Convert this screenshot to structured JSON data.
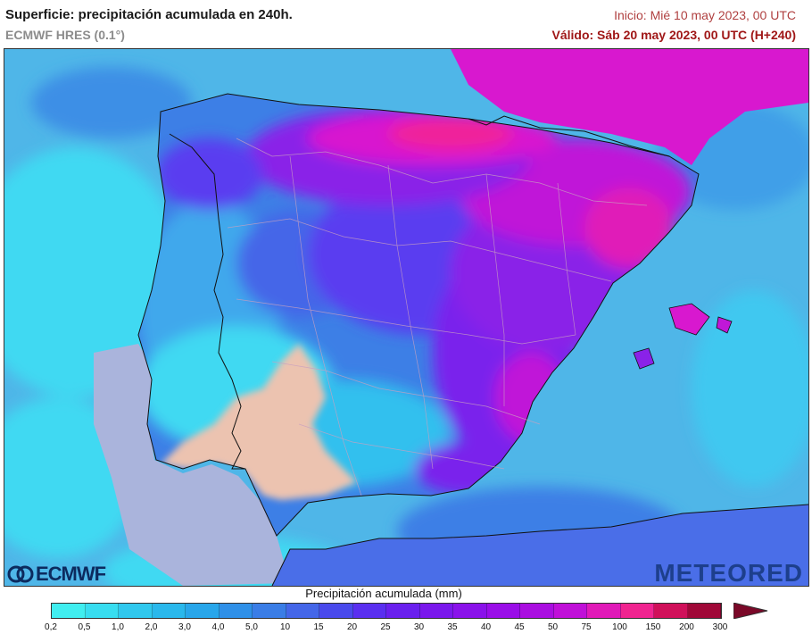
{
  "header": {
    "title": "Superficie: precipitación acumulada en 240h.",
    "model": "ECMWF HRES (0.1°)",
    "init": "Inicio: Mié 10 may 2023, 00 UTC",
    "valid": "Válido: Sáb 20 may 2023, 00 UTC (H+240)"
  },
  "logos": {
    "ecmwf": "ECMWF",
    "meteored": "METEORED"
  },
  "legend": {
    "title": "Precipitación acumulada (mm)",
    "unit": "mm",
    "ticks": [
      "0,2",
      "0,5",
      "1,0",
      "2,0",
      "3,0",
      "4,0",
      "5,0",
      "10",
      "15",
      "20",
      "25",
      "30",
      "35",
      "40",
      "45",
      "50",
      "75",
      "100",
      "150",
      "200",
      "300"
    ],
    "colors": [
      "#40eef0",
      "#38ddf0",
      "#30c8ee",
      "#2ab8ec",
      "#28a6ea",
      "#2f90e8",
      "#3a7de6",
      "#4466e8",
      "#4a4aec",
      "#5a2ff0",
      "#6a20ee",
      "#7a18ec",
      "#8a12ea",
      "#9a0ee8",
      "#aa0ee0",
      "#c010d8",
      "#e01ab8",
      "#f02490",
      "#d0105a",
      "#a00838"
    ]
  },
  "map": {
    "colors": {
      "sea": "#4fb6e8",
      "sea_cyan": "#3fd9f2",
      "dry_patch": "#ecc3b0",
      "atlantic_gray": "#aab4dc",
      "land_blue": "#3d7fe6",
      "land_violet": "#5a3cf0",
      "land_purple": "#8a22e8",
      "land_magenta": "#d818cf",
      "land_pink": "#f0209a",
      "borders": "#111111",
      "admin": "#c9a0c0"
    }
  }
}
